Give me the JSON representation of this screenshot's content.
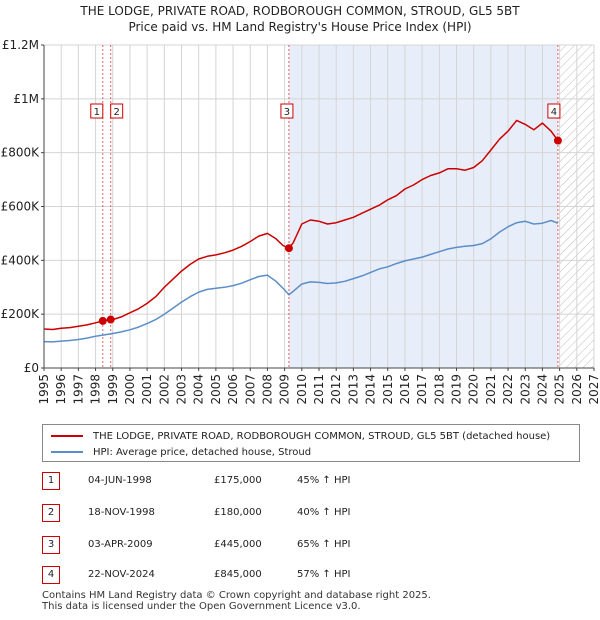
{
  "chart_data": {
    "type": "line",
    "title": "THE LODGE, PRIVATE ROAD, RODBOROUGH COMMON, STROUD, GL5 5BT",
    "subtitle": "Price paid vs. HM Land Registry's House Price Index (HPI)",
    "xlim": [
      1995,
      2027
    ],
    "ylim": [
      0,
      1200000
    ],
    "x_ticks": [
      "1995",
      "1996",
      "1997",
      "1998",
      "1999",
      "2000",
      "2001",
      "2002",
      "2003",
      "2004",
      "2005",
      "2006",
      "2007",
      "2008",
      "2009",
      "2010",
      "2011",
      "2012",
      "2013",
      "2014",
      "2015",
      "2016",
      "2017",
      "2018",
      "2019",
      "2020",
      "2021",
      "2022",
      "2023",
      "2024",
      "2025",
      "2026",
      "2027"
    ],
    "y_ticks": [
      {
        "value": 0,
        "label": "£0"
      },
      {
        "value": 200000,
        "label": "£200K"
      },
      {
        "value": 400000,
        "label": "£400K"
      },
      {
        "value": 600000,
        "label": "£600K"
      },
      {
        "value": 800000,
        "label": "£800K"
      },
      {
        "value": 1000000,
        "label": "£1M"
      },
      {
        "value": 1200000,
        "label": "£1.2M"
      }
    ],
    "shaded_region": [
      2009.25,
      2024.9
    ],
    "future_hatch_start": 2025.0,
    "series": [
      {
        "name": "THE LODGE, PRIVATE ROAD, RODBOROUGH COMMON, STROUD, GL5 5BT (detached house)",
        "color": "#cc0000",
        "x": [
          1995.0,
          1995.5,
          1996.0,
          1996.5,
          1997.0,
          1997.5,
          1998.0,
          1998.42,
          1998.88,
          1999.0,
          1999.5,
          2000.0,
          2000.5,
          2001.0,
          2001.5,
          2002.0,
          2002.5,
          2003.0,
          2003.5,
          2004.0,
          2004.5,
          2005.0,
          2005.5,
          2006.0,
          2006.5,
          2007.0,
          2007.5,
          2008.0,
          2008.5,
          2008.9,
          2009.25,
          2009.5,
          2010.0,
          2010.5,
          2011.0,
          2011.5,
          2012.0,
          2012.5,
          2013.0,
          2013.5,
          2014.0,
          2014.5,
          2015.0,
          2015.5,
          2016.0,
          2016.5,
          2017.0,
          2017.5,
          2018.0,
          2018.5,
          2019.0,
          2019.5,
          2020.0,
          2020.5,
          2021.0,
          2021.5,
          2022.0,
          2022.5,
          2023.0,
          2023.5,
          2024.0,
          2024.5,
          2024.9
        ],
        "y": [
          145000,
          143000,
          148000,
          150000,
          155000,
          160000,
          168000,
          175000,
          180000,
          180000,
          190000,
          205000,
          220000,
          240000,
          265000,
          300000,
          330000,
          360000,
          385000,
          405000,
          415000,
          420000,
          428000,
          438000,
          452000,
          470000,
          490000,
          500000,
          480000,
          455000,
          445000,
          465000,
          535000,
          550000,
          545000,
          535000,
          540000,
          550000,
          560000,
          575000,
          590000,
          605000,
          625000,
          640000,
          665000,
          680000,
          700000,
          715000,
          725000,
          740000,
          740000,
          735000,
          745000,
          770000,
          810000,
          850000,
          880000,
          920000,
          905000,
          885000,
          910000,
          880000,
          845000
        ]
      },
      {
        "name": "HPI: Average price, detached house, Stroud",
        "color": "#5b8ec8",
        "x": [
          1995.0,
          1995.5,
          1996.0,
          1996.5,
          1997.0,
          1997.5,
          1998.0,
          1998.5,
          1999.0,
          1999.5,
          2000.0,
          2000.5,
          2001.0,
          2001.5,
          2002.0,
          2002.5,
          2003.0,
          2003.5,
          2004.0,
          2004.5,
          2005.0,
          2005.5,
          2006.0,
          2006.5,
          2007.0,
          2007.5,
          2008.0,
          2008.5,
          2009.0,
          2009.25,
          2009.5,
          2010.0,
          2010.5,
          2011.0,
          2011.5,
          2012.0,
          2012.5,
          2013.0,
          2013.5,
          2014.0,
          2014.5,
          2015.0,
          2015.5,
          2016.0,
          2016.5,
          2017.0,
          2017.5,
          2018.0,
          2018.5,
          2019.0,
          2019.5,
          2020.0,
          2020.5,
          2021.0,
          2021.5,
          2022.0,
          2022.5,
          2023.0,
          2023.5,
          2024.0,
          2024.5,
          2024.9
        ],
        "y": [
          98000,
          97000,
          100000,
          102000,
          106000,
          111000,
          118000,
          123000,
          128000,
          134000,
          142000,
          152000,
          165000,
          180000,
          200000,
          222000,
          245000,
          265000,
          282000,
          292000,
          296000,
          300000,
          306000,
          315000,
          328000,
          340000,
          345000,
          322000,
          290000,
          272000,
          285000,
          312000,
          320000,
          318000,
          314000,
          316000,
          322000,
          332000,
          342000,
          355000,
          368000,
          376000,
          388000,
          398000,
          405000,
          412000,
          422000,
          432000,
          442000,
          448000,
          452000,
          455000,
          462000,
          480000,
          505000,
          525000,
          540000,
          545000,
          535000,
          538000,
          548000,
          538000
        ]
      }
    ],
    "sale_points": [
      {
        "id": "1",
        "x": 1998.42,
        "y": 175000
      },
      {
        "id": "2",
        "x": 1998.88,
        "y": 180000
      },
      {
        "id": "3",
        "x": 2009.25,
        "y": 445000
      },
      {
        "id": "4",
        "x": 2024.9,
        "y": 845000
      }
    ],
    "marker_lines": [
      1998.42,
      1998.88,
      2009.25,
      2024.9
    ]
  },
  "legend": {
    "property_label": "THE LODGE, PRIVATE ROAD, RODBOROUGH COMMON, STROUD, GL5 5BT (detached house)",
    "hpi_label": "HPI: Average price, detached house, Stroud"
  },
  "sales": [
    {
      "num": "1",
      "date": "04-JUN-1998",
      "price": "£175,000",
      "hpi": "45% ↑ HPI"
    },
    {
      "num": "2",
      "date": "18-NOV-1998",
      "price": "£180,000",
      "hpi": "40% ↑ HPI"
    },
    {
      "num": "3",
      "date": "03-APR-2009",
      "price": "£445,000",
      "hpi": "65% ↑ HPI"
    },
    {
      "num": "4",
      "date": "22-NOV-2024",
      "price": "£845,000",
      "hpi": "57% ↑ HPI"
    }
  ],
  "footer": {
    "line1": "Contains HM Land Registry data © Crown copyright and database right 2025.",
    "line2": "This data is licensed under the Open Government Licence v3.0."
  }
}
